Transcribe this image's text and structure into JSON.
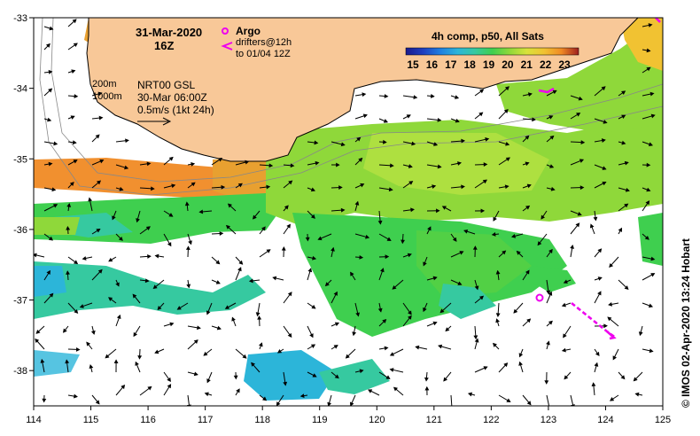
{
  "header": {
    "date": "31-Mar-2020",
    "time": "16Z"
  },
  "legend": {
    "argo_label": "Argo",
    "drifters_label": "drifters@12h",
    "drifters_to": "to 01/04 12Z",
    "composite_title": "4h comp, p50, All Sats",
    "sst_ticks": [
      "15",
      "16",
      "17",
      "18",
      "19",
      "20",
      "21",
      "22",
      "23"
    ],
    "colorbar_colors": [
      "#1a1a8c",
      "#1f3fbf",
      "#1f7fe0",
      "#2cb5d9",
      "#36c9a0",
      "#3fcf4f",
      "#8fd83a",
      "#d8e23a",
      "#f1c232",
      "#f08a24",
      "#d9442a",
      "#9e1f1f"
    ]
  },
  "annotations": {
    "isobath_200": "200m",
    "isobath_1000": "1000m",
    "model": "NRT00 GSL",
    "model_time": "30-Mar 06:00Z",
    "vector_scale": "0.5m/s (1kt 24h)"
  },
  "axes": {
    "x_ticks": [
      "114",
      "115",
      "116",
      "117",
      "118",
      "119",
      "120",
      "121",
      "122",
      "123",
      "124",
      "125"
    ],
    "y_ticks": [
      "-33",
      "-34",
      "-35",
      "-36",
      "-37",
      "-38"
    ],
    "xlim": [
      114,
      125
    ],
    "ylim": [
      -38.5,
      -33
    ]
  },
  "credit": "© IMOS 02-Apr-2020 13:24 Hobart",
  "colors": {
    "land": "#f8c898",
    "argo": "#ee00ee",
    "drifter": "#ee00ee"
  },
  "argo_floats": [
    {
      "lon": 122.85,
      "lat": -36.95
    }
  ],
  "drifter_track_end": {
    "lon": 124.15,
    "lat": -37.55
  }
}
